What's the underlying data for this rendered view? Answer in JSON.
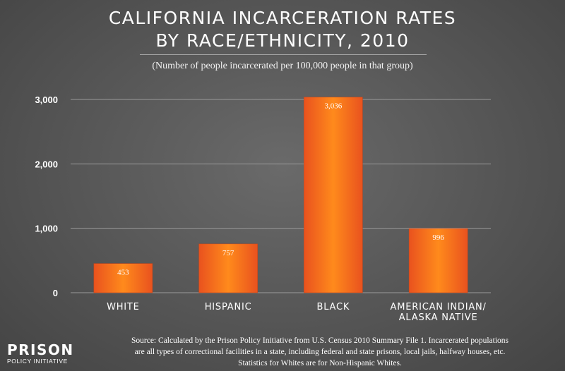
{
  "chart_data": {
    "type": "bar",
    "title_lines": [
      "CALIFORNIA INCARCERATION RATES",
      "BY RACE/ETHNICITY, 2010"
    ],
    "subtitle": "(Number of people incarcerated per 100,000 people in that group)",
    "categories": [
      [
        "WHITE"
      ],
      [
        "HISPANIC"
      ],
      [
        "BLACK"
      ],
      [
        "AMERICAN INDIAN/",
        "ALASKA NATIVE"
      ]
    ],
    "values": [
      453,
      757,
      3036,
      996
    ],
    "value_labels": [
      "453",
      "757",
      "3,036",
      "996"
    ],
    "ylim": [
      0,
      3000
    ],
    "yticks": [
      0,
      1000,
      2000,
      3000
    ],
    "ytick_labels": [
      "0",
      "1,000",
      "2,000",
      "3,000"
    ],
    "grid": true,
    "xlabel": "",
    "ylabel": "",
    "bar_color_center": "#ff8a1c",
    "bar_color_edge": "#e9521e"
  },
  "source_lines": [
    "Source: Calculated by the Prison Policy Initiative from U.S. Census 2010 Summary File 1. Incarcerated populations",
    "are all types of correctional facilities in a state, including federal and state prisons, local jails, halfway houses, etc.",
    "Statistics for Whites are for Non-Hispanic Whites."
  ],
  "logo": {
    "top": "PRISON",
    "bottom": "POLICY INITIATIVE"
  }
}
